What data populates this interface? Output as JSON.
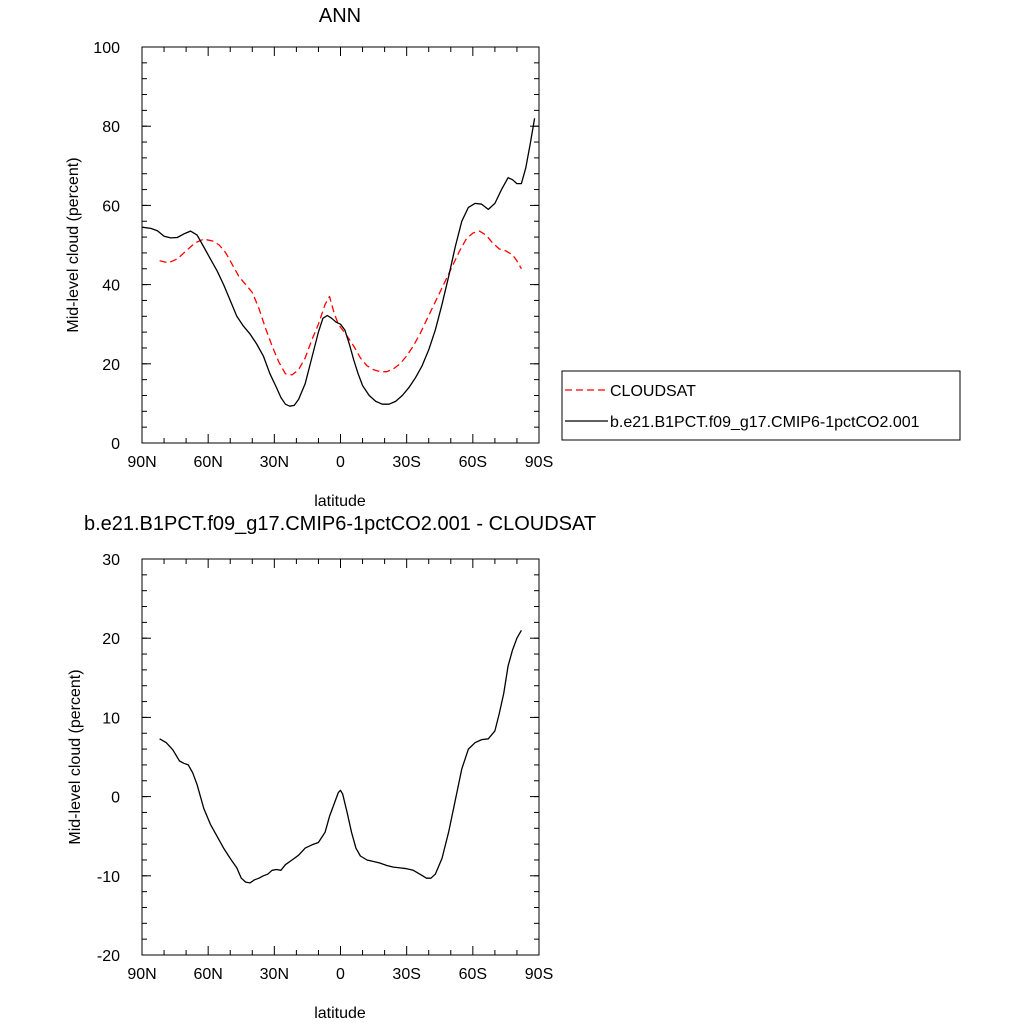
{
  "chart_data": [
    {
      "type": "line",
      "title": "ANN",
      "xlabel": "latitude",
      "ylabel": "Mid-level cloud (percent)",
      "xlim": [
        -90,
        90
      ],
      "ylim": [
        0,
        100
      ],
      "x_ticks": [
        -90,
        -60,
        -30,
        0,
        30,
        60,
        90
      ],
      "x_tick_labels": [
        "90N",
        "60N",
        "30N",
        "0",
        "30S",
        "60S",
        "90S"
      ],
      "y_ticks": [
        0,
        20,
        40,
        60,
        80,
        100
      ],
      "y_tick_labels": [
        "0",
        "20",
        "40",
        "60",
        "80",
        "100"
      ],
      "legend_position": "right",
      "series": [
        {
          "name": "CLOUDSAT",
          "color": "#ff0000",
          "dash": "dashed",
          "x": [
            -82,
            -78,
            -74,
            -70,
            -66,
            -62,
            -58,
            -55,
            -52,
            -49,
            -46,
            -43,
            -40,
            -37,
            -34,
            -31,
            -28,
            -25,
            -22,
            -19,
            -16,
            -13,
            -10,
            -7,
            -5,
            -3,
            -1,
            1,
            3,
            6,
            9,
            12,
            15,
            18,
            21,
            24,
            27,
            30,
            33,
            36,
            39,
            42,
            45,
            48,
            51,
            54,
            57,
            60,
            63,
            66,
            69,
            72,
            75,
            78,
            80,
            82
          ],
          "y": [
            46,
            45.5,
            46.5,
            48.5,
            50.5,
            51.5,
            51,
            50,
            48,
            45,
            42,
            40,
            38,
            34,
            29,
            24.5,
            20.5,
            17.5,
            17.2,
            18.5,
            21.5,
            26,
            30,
            35,
            37,
            33,
            30,
            28.5,
            27,
            24.5,
            21.5,
            19.5,
            18.5,
            18,
            18,
            18.7,
            20,
            22,
            24.5,
            27.5,
            31,
            34.5,
            38,
            41.5,
            45,
            48.5,
            51.5,
            53,
            53.5,
            52.5,
            50.5,
            49,
            48.5,
            47.5,
            46,
            44
          ]
        },
        {
          "name": "b.e21.B1PCT.f09_g17.CMIP6-1pctCO2.001",
          "color": "#000000",
          "dash": "solid",
          "x": [
            -90,
            -86,
            -83,
            -80,
            -77,
            -74,
            -71,
            -68,
            -65,
            -62,
            -59,
            -56,
            -53,
            -50,
            -47,
            -44,
            -41,
            -38,
            -35,
            -32,
            -29,
            -27,
            -25,
            -23,
            -21,
            -19,
            -16,
            -13,
            -10,
            -8,
            -6,
            -4,
            -2,
            0,
            2,
            4,
            6,
            8,
            10,
            13,
            16,
            19,
            22,
            25,
            28,
            31,
            34,
            37,
            40,
            43,
            46,
            49,
            52,
            55,
            58,
            61,
            64,
            67,
            70,
            73,
            76,
            78,
            80,
            82,
            84,
            86,
            88
          ],
          "y": [
            54.5,
            54.2,
            53.6,
            52.2,
            51.8,
            51.9,
            52.8,
            53.5,
            52.5,
            49.5,
            46.5,
            43.5,
            40,
            36,
            32,
            29.5,
            27.5,
            25,
            22,
            17.5,
            14,
            11.5,
            9.8,
            9.3,
            9.5,
            11,
            15,
            21.5,
            28,
            31.5,
            32.2,
            31.5,
            30.5,
            30,
            28.5,
            25,
            21,
            17.5,
            14.5,
            12,
            10.5,
            9.8,
            9.8,
            10.5,
            12,
            14,
            16.5,
            19.5,
            23.5,
            28.5,
            35,
            42,
            49.5,
            56,
            59.5,
            60.5,
            60.3,
            59,
            60.5,
            64,
            67,
            66.5,
            65.5,
            65.5,
            69.5,
            75.5,
            82
          ]
        }
      ]
    },
    {
      "type": "line",
      "title": "b.e21.B1PCT.f09_g17.CMIP6-1pctCO2.001 - CLOUDSAT",
      "xlabel": "latitude",
      "ylabel": "Mid-level cloud (percent)",
      "xlim": [
        -90,
        90
      ],
      "ylim": [
        -20,
        30
      ],
      "x_ticks": [
        -90,
        -60,
        -30,
        0,
        30,
        60,
        90
      ],
      "x_tick_labels": [
        "90N",
        "60N",
        "30N",
        "0",
        "30S",
        "60S",
        "90S"
      ],
      "y_ticks": [
        -20,
        -10,
        0,
        10,
        20,
        30
      ],
      "y_tick_labels": [
        "-20",
        "-10",
        "0",
        "10",
        "20",
        "30"
      ],
      "series": [
        {
          "color": "#000000",
          "dash": "solid",
          "x": [
            -82,
            -79,
            -76,
            -73,
            -71,
            -69,
            -67,
            -65,
            -62,
            -59,
            -56,
            -53,
            -50,
            -47,
            -45,
            -43,
            -41,
            -39,
            -37,
            -35,
            -33,
            -31,
            -29,
            -27,
            -25,
            -22,
            -19,
            -16,
            -13,
            -10,
            -7,
            -5,
            -3,
            -1,
            0,
            1,
            3,
            5,
            7,
            9,
            12,
            15,
            18,
            21,
            24,
            27,
            30,
            33,
            36,
            39,
            41,
            43,
            46,
            49,
            52,
            55,
            58,
            61,
            64,
            67,
            70,
            72,
            74,
            76,
            78,
            80,
            82
          ],
          "y": [
            7.3,
            6.8,
            5.9,
            4.5,
            4.2,
            4,
            3,
            1.5,
            -1.5,
            -3.5,
            -5,
            -6.5,
            -7.8,
            -9,
            -10.3,
            -10.8,
            -10.9,
            -10.5,
            -10.3,
            -10,
            -9.8,
            -9.3,
            -9.2,
            -9.3,
            -8.6,
            -8,
            -7.4,
            -6.5,
            -6.1,
            -5.8,
            -4.5,
            -2.5,
            -1,
            0.5,
            0.8,
            0.3,
            -2,
            -4.5,
            -6.5,
            -7.5,
            -8,
            -8.2,
            -8.4,
            -8.7,
            -8.9,
            -9,
            -9.1,
            -9.3,
            -9.8,
            -10.3,
            -10.3,
            -9.8,
            -7.8,
            -4.5,
            -0.5,
            3.5,
            6,
            6.8,
            7.2,
            7.3,
            8.3,
            10.5,
            13,
            16.5,
            18.5,
            20,
            21
          ]
        }
      ]
    }
  ]
}
